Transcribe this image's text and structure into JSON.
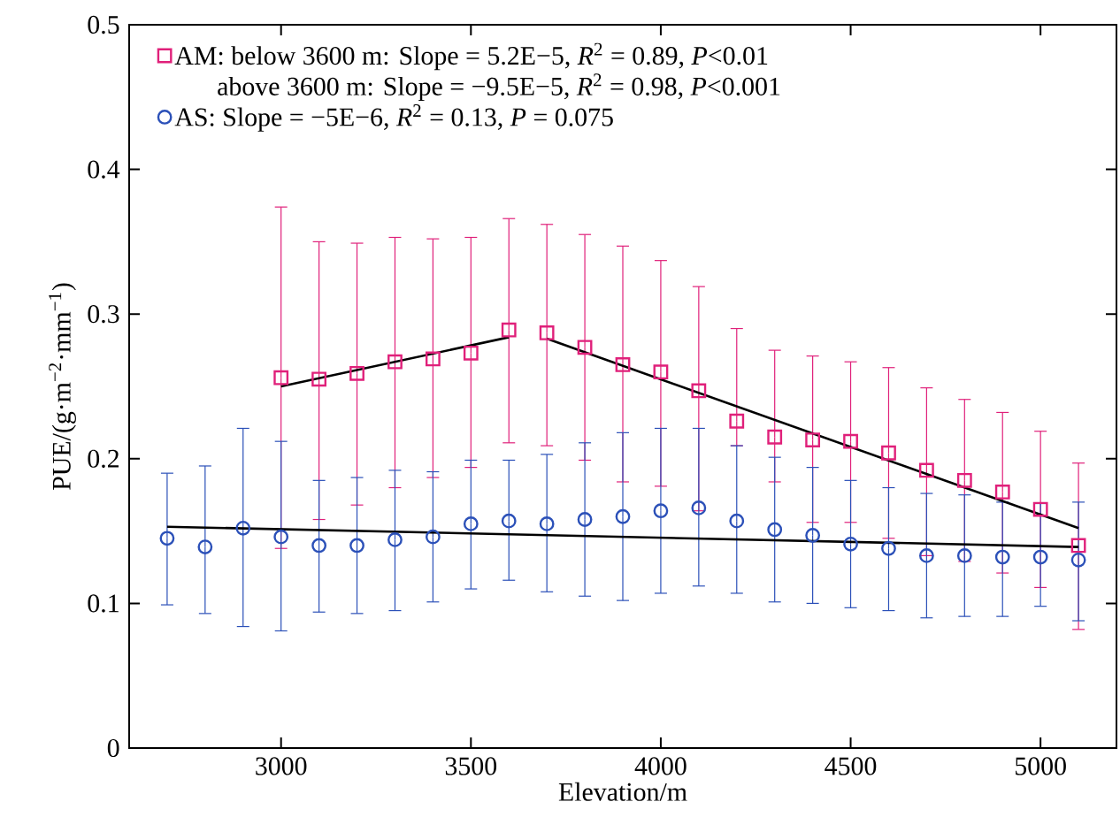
{
  "chart_data": {
    "type": "scatter",
    "xlabel": "Elevation/m",
    "ylabel": "PUE/(g·m$^{−2}$·mm$^{−1}$)",
    "xlim": [
      2600,
      5200
    ],
    "xticks": [
      3000,
      3500,
      4000,
      4500,
      5000
    ],
    "ylim": [
      0,
      0.5
    ],
    "yticks": [
      0,
      0.1,
      0.2,
      0.3,
      0.4,
      0.5
    ],
    "grid": false,
    "legend": "top left",
    "annotations": [
      "above 3600 m: Slope = −9.5E−5, *R*$^{2}$ = 0.98, *P*<0.001"
    ],
    "series": [
      {
        "name": "AM: below 3600 m: Slope = 5.2E−5, *R*$^{2}$ = 0.89, *P*<0.01",
        "color": "#e0207a",
        "marker": "square",
        "x": [
          3000,
          3100,
          3200,
          3300,
          3400,
          3500,
          3600,
          3700,
          3800,
          3900,
          4000,
          4100,
          4200,
          4300,
          4400,
          4500,
          4600,
          4700,
          4800,
          4900,
          5000,
          5100
        ],
        "values": [
          0.256,
          0.255,
          0.259,
          0.267,
          0.269,
          0.273,
          0.289,
          0.287,
          0.277,
          0.265,
          0.26,
          0.247,
          0.226,
          0.215,
          0.213,
          0.212,
          0.204,
          0.192,
          0.185,
          0.177,
          0.165,
          0.14
        ],
        "errors": [
          [
            0.138,
            0.374
          ],
          [
            0.158,
            0.35
          ],
          [
            0.168,
            0.349
          ],
          [
            0.18,
            0.353
          ],
          [
            0.187,
            0.352
          ],
          [
            0.194,
            0.353
          ],
          [
            0.211,
            0.366
          ],
          [
            0.209,
            0.362
          ],
          [
            0.199,
            0.355
          ],
          [
            0.184,
            0.347
          ],
          [
            0.181,
            0.337
          ],
          [
            0.164,
            0.319
          ],
          [
            0.209,
            0.29
          ],
          [
            0.184,
            0.275
          ],
          [
            0.156,
            0.271
          ],
          [
            0.156,
            0.267
          ],
          [
            0.145,
            0.263
          ],
          [
            0.133,
            0.249
          ],
          [
            0.129,
            0.241
          ],
          [
            0.121,
            0.232
          ],
          [
            0.111,
            0.219
          ],
          [
            0.082,
            0.197
          ]
        ]
      },
      {
        "name": "AS: Slope =  −5E−6, *R*$^{2}$ = 0.13, *P* = 0.075",
        "color": "#2b50b8",
        "marker": "circle",
        "x": [
          2700,
          2800,
          2900,
          3000,
          3100,
          3200,
          3300,
          3400,
          3500,
          3600,
          3700,
          3800,
          3900,
          4000,
          4100,
          4200,
          4300,
          4400,
          4500,
          4600,
          4700,
          4800,
          4900,
          5000,
          5100
        ],
        "values": [
          0.145,
          0.139,
          0.152,
          0.146,
          0.14,
          0.14,
          0.144,
          0.146,
          0.155,
          0.157,
          0.155,
          0.158,
          0.16,
          0.164,
          0.166,
          0.157,
          0.151,
          0.147,
          0.141,
          0.138,
          0.133,
          0.133,
          0.132,
          0.132,
          0.13
        ],
        "errors": [
          [
            0.099,
            0.19
          ],
          [
            0.093,
            0.195
          ],
          [
            0.084,
            0.221
          ],
          [
            0.081,
            0.212
          ],
          [
            0.094,
            0.185
          ],
          [
            0.093,
            0.187
          ],
          [
            0.095,
            0.192
          ],
          [
            0.101,
            0.191
          ],
          [
            0.11,
            0.199
          ],
          [
            0.116,
            0.199
          ],
          [
            0.108,
            0.203
          ],
          [
            0.105,
            0.211
          ],
          [
            0.102,
            0.218
          ],
          [
            0.107,
            0.221
          ],
          [
            0.112,
            0.221
          ],
          [
            0.107,
            0.209
          ],
          [
            0.101,
            0.201
          ],
          [
            0.1,
            0.194
          ],
          [
            0.097,
            0.185
          ],
          [
            0.095,
            0.18
          ],
          [
            0.09,
            0.176
          ],
          [
            0.091,
            0.175
          ],
          [
            0.091,
            0.17
          ],
          [
            0.098,
            0.169
          ],
          [
            0.088,
            0.17
          ]
        ]
      },
      {
        "type": "line",
        "color": "#000000",
        "x": [
          3000,
          3600
        ],
        "values": [
          0.25,
          0.284
        ]
      },
      {
        "type": "line",
        "color": "#000000",
        "x": [
          3700,
          5100
        ],
        "values": [
          0.283,
          0.152
        ]
      },
      {
        "type": "line",
        "color": "#000000",
        "x": [
          2700,
          5100
        ],
        "values": [
          0.153,
          0.139
        ]
      }
    ]
  }
}
